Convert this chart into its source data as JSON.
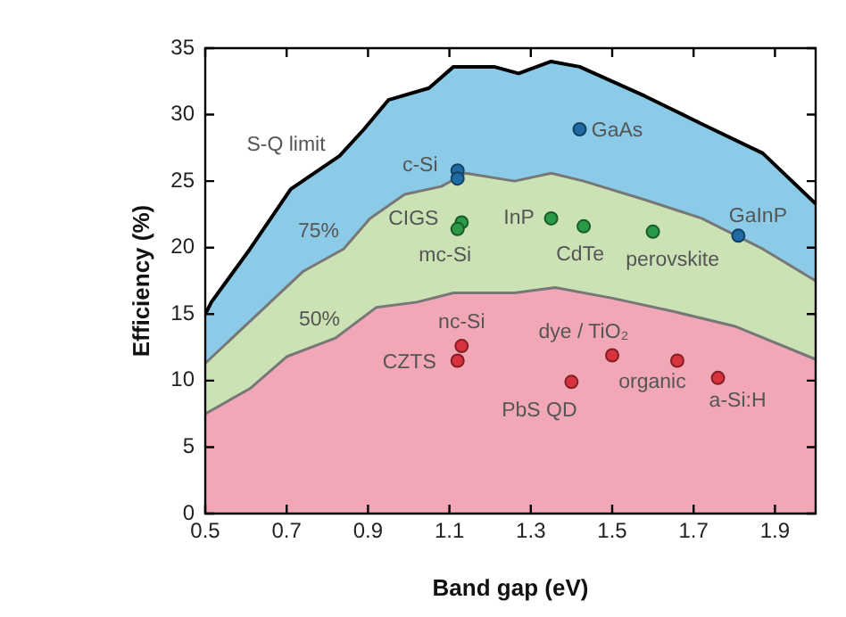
{
  "chart_data": {
    "type": "area",
    "xlabel": "Band gap (eV)",
    "ylabel": "Efficiency (%)",
    "xlim": [
      0.5,
      2.0
    ],
    "xticks": [
      0.5,
      0.7,
      0.9,
      1.1,
      1.3,
      1.5,
      1.7,
      1.9
    ],
    "ylim": [
      0,
      35
    ],
    "yticks": [
      0,
      5,
      10,
      15,
      20,
      25,
      30,
      35
    ],
    "grid": false,
    "legend": false,
    "series": [
      {
        "color": "#8ccbe8",
        "x": [
          0.5,
          0.515,
          0.61,
          0.71,
          0.83,
          0.89,
          0.95,
          1.05,
          1.11,
          1.21,
          1.27,
          1.35,
          1.42,
          1.58,
          1.72,
          1.87,
          2.0
        ],
        "values": [
          15.0,
          15.9,
          19.9,
          24.4,
          26.9,
          28.9,
          31.1,
          32.0,
          33.6,
          33.6,
          33.1,
          34.0,
          33.6,
          31.4,
          29.3,
          27.1,
          23.3
        ]
      },
      {
        "color": "#cbe2b4",
        "x": [
          0.5,
          0.66,
          0.74,
          0.84,
          0.905,
          0.99,
          1.08,
          1.14,
          1.26,
          1.35,
          1.43,
          1.58,
          1.72,
          1.87,
          2.0
        ],
        "values": [
          11.3,
          15.9,
          18.2,
          19.9,
          22.2,
          24.0,
          24.6,
          25.6,
          25.0,
          25.6,
          25.0,
          23.6,
          22.2,
          19.9,
          17.5
        ]
      },
      {
        "color": "#f2a7b6",
        "x": [
          0.5,
          0.61,
          0.7,
          0.82,
          0.92,
          1.02,
          1.11,
          1.26,
          1.36,
          1.5,
          1.65,
          1.8,
          2.0
        ],
        "values": [
          7.5,
          9.4,
          11.8,
          13.2,
          15.5,
          15.9,
          16.6,
          16.6,
          17.0,
          16.2,
          15.2,
          14.1,
          11.6
        ]
      },
      {
        "type": "scatter",
        "marker": "circle",
        "color": "#1f6aa5",
        "x": [
          1.12,
          1.12,
          1.42,
          1.81
        ],
        "values": [
          25.8,
          25.2,
          28.9,
          20.9
        ]
      },
      {
        "type": "scatter",
        "marker": "circle",
        "color": "#2a9a48",
        "x": [
          1.13,
          1.12,
          1.35,
          1.43,
          1.6
        ],
        "values": [
          21.9,
          21.4,
          22.2,
          21.6,
          21.2
        ]
      },
      {
        "type": "scatter",
        "marker": "circle",
        "color": "#d9323f",
        "x": [
          1.13,
          1.12,
          1.4,
          1.5,
          1.66,
          1.76
        ],
        "values": [
          12.6,
          11.5,
          9.9,
          11.9,
          11.5,
          10.2
        ]
      }
    ],
    "annotations": [
      {
        "text": "S-Q limit",
        "x": 0.83,
        "y": 26.9
      },
      {
        "text": "75%",
        "x": 0.84,
        "y": 19.9
      },
      {
        "text": "50%",
        "x": 0.82,
        "y": 13.2
      },
      {
        "text": "c-Si",
        "x": 1.12,
        "y": 25.8
      },
      {
        "text": "GaAs",
        "x": 1.42,
        "y": 28.9
      },
      {
        "text": "GaInP",
        "x": 1.81,
        "y": 20.9
      },
      {
        "text": "CIGS",
        "x": 1.13,
        "y": 21.9
      },
      {
        "text": "mc-Si",
        "x": 1.12,
        "y": 21.4
      },
      {
        "text": "InP",
        "x": 1.35,
        "y": 22.2
      },
      {
        "text": "CdTe",
        "x": 1.43,
        "y": 21.6
      },
      {
        "text": "perovskite",
        "x": 1.6,
        "y": 21.2
      },
      {
        "text": "nc-Si",
        "x": 1.13,
        "y": 12.6
      },
      {
        "text": "CZTS",
        "x": 1.12,
        "y": 11.5
      },
      {
        "text": "dye / TiO₂",
        "x": 1.5,
        "y": 11.9
      },
      {
        "text": "PbS QD",
        "x": 1.4,
        "y": 9.9
      },
      {
        "text": "organic",
        "x": 1.66,
        "y": 11.5
      },
      {
        "text": "a-Si:H",
        "x": 1.76,
        "y": 10.2
      }
    ]
  }
}
